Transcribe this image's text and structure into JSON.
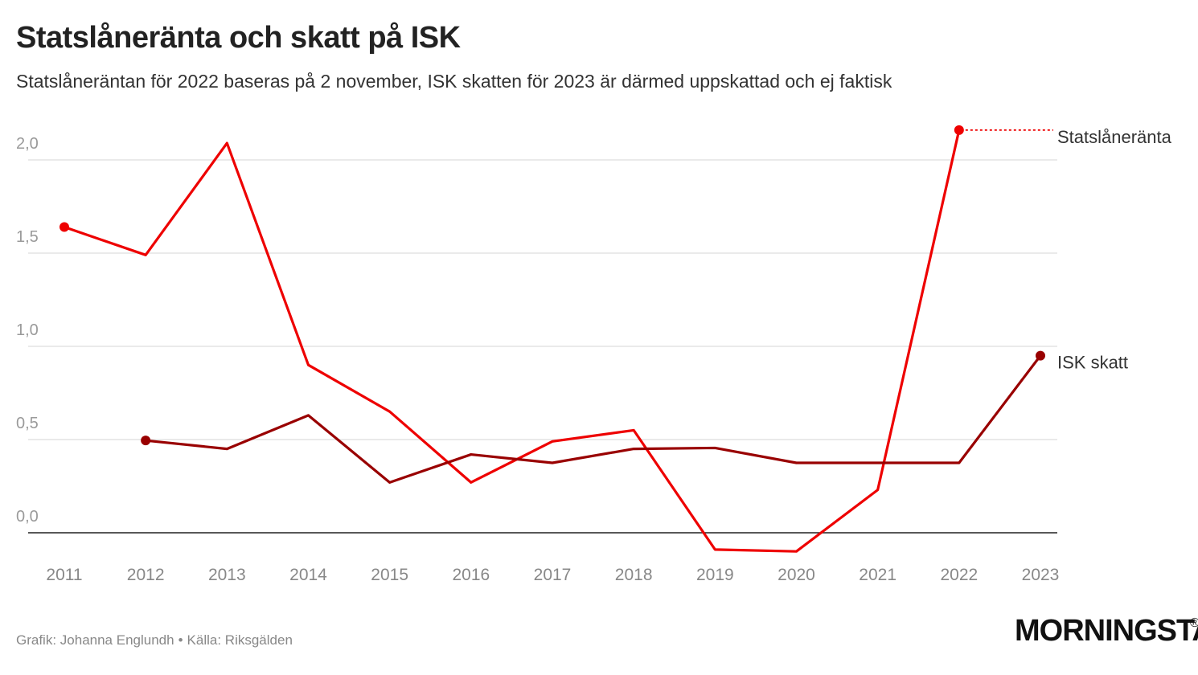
{
  "header": {
    "title": "Statslåneränta och skatt på ISK",
    "subtitle": "Statslåneräntan för 2022 baseras på 2 november, ISK skatten för 2023 är därmed uppskattad och ej faktisk"
  },
  "footer": {
    "credit": "Grafik: Johanna Englundh",
    "separator": "•",
    "source": "Källa: Riksgälden"
  },
  "logo": {
    "text": "MORNINGSTAR",
    "registered": "®"
  },
  "colors": {
    "statslaneranta": "#ee0000",
    "isk": "#990000",
    "grid": "#dddddd",
    "axis": "#222222",
    "tick": "#9a9a9a"
  },
  "chart_data": {
    "type": "line",
    "title": "Statslåneränta och skatt på ISK",
    "xlabel": "",
    "ylabel": "",
    "ylim": [
      -0.1,
      2.2
    ],
    "yticks": [
      {
        "value": 0.0,
        "label": "0,0"
      },
      {
        "value": 0.5,
        "label": "0,5"
      },
      {
        "value": 1.0,
        "label": "1,0"
      },
      {
        "value": 1.5,
        "label": "1,5"
      },
      {
        "value": 2.0,
        "label": "2,0"
      }
    ],
    "categories": [
      "2011",
      "2012",
      "2013",
      "2014",
      "2015",
      "2016",
      "2017",
      "2018",
      "2019",
      "2020",
      "2021",
      "2022",
      "2023"
    ],
    "series": [
      {
        "name": "Statslåneränta",
        "color": "#ee0000",
        "values": [
          1.64,
          1.49,
          2.09,
          0.9,
          0.65,
          0.27,
          0.49,
          0.55,
          -0.09,
          -0.1,
          0.23,
          2.16,
          null
        ]
      },
      {
        "name": "ISK skatt",
        "color": "#990000",
        "values": [
          null,
          0.495,
          0.45,
          0.63,
          0.27,
          0.42,
          0.375,
          0.45,
          0.455,
          0.375,
          0.375,
          0.375,
          0.95
        ]
      }
    ],
    "legend": "inline-right",
    "grid": true
  }
}
